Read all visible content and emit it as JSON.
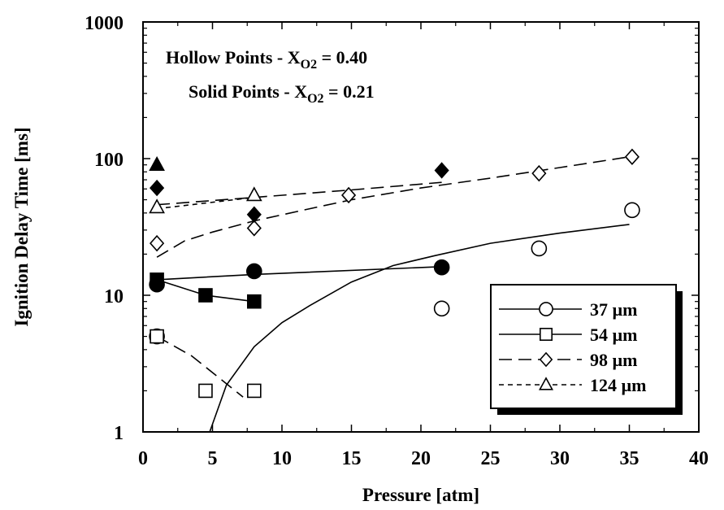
{
  "chart_data": {
    "type": "scatter",
    "xlabel": "Pressure [atm]",
    "ylabel": "Ignition Delay Time [ms]",
    "xlim": [
      0,
      40
    ],
    "ylim": [
      1,
      1000
    ],
    "yscale": "log",
    "grid": false,
    "x_ticks": [
      "0",
      "5",
      "10",
      "15",
      "20",
      "25",
      "30",
      "35",
      "40"
    ],
    "y_ticks": [
      "1",
      "10",
      "100",
      "1000"
    ],
    "annotations": [
      {
        "prefix": "Hollow Points - X",
        "sub": "O2",
        "suffix": " = 0.40"
      },
      {
        "prefix": "Solid Points - X",
        "sub": "O2",
        "suffix": " = 0.21"
      }
    ],
    "legend_position": "bottom-right",
    "series": [
      {
        "name": "37 µm",
        "marker": "circle",
        "line_style": "solid",
        "hollow_points": [
          [
            1,
            5
          ],
          [
            21.5,
            8
          ],
          [
            28.5,
            22
          ],
          [
            35.2,
            42
          ]
        ],
        "solid_points": [
          [
            1,
            12
          ],
          [
            8,
            15
          ],
          [
            21.5,
            16
          ]
        ],
        "fit_lines": [
          [
            [
              4.8,
              1
            ],
            [
              6,
              2.2
            ],
            [
              8,
              4.2
            ],
            [
              10,
              6.3
            ],
            [
              12,
              8.4
            ],
            [
              15,
              12.5
            ],
            [
              18,
              16.5
            ],
            [
              21,
              19.5
            ],
            [
              25,
              24
            ],
            [
              30,
              28.5
            ],
            [
              35,
              33
            ]
          ],
          [
            [
              1,
              13
            ],
            [
              8,
              14.2
            ],
            [
              21.5,
              16.2
            ]
          ]
        ]
      },
      {
        "name": "54 µm",
        "marker": "square",
        "line_style": "solid",
        "hollow_points": [
          [
            1,
            5
          ],
          [
            4.5,
            2
          ],
          [
            8,
            2
          ]
        ],
        "solid_points": [
          [
            1,
            13
          ],
          [
            4.5,
            10
          ],
          [
            8,
            9
          ]
        ],
        "fit_lines": [
          [
            [
              1,
              13
            ],
            [
              4.5,
              10
            ],
            [
              8,
              9
            ]
          ]
        ],
        "dashed_fit_lines": [
          [
            [
              1,
              5
            ],
            [
              3.5,
              3.6
            ],
            [
              7.2,
              1.8
            ]
          ]
        ]
      },
      {
        "name": "98 µm",
        "marker": "diamond",
        "line_style": "dashed",
        "hollow_points": [
          [
            1,
            24
          ],
          [
            8,
            31
          ],
          [
            14.8,
            54
          ],
          [
            28.5,
            78
          ],
          [
            35.2,
            103
          ]
        ],
        "solid_points": [
          [
            1,
            61
          ],
          [
            8,
            39
          ],
          [
            21.5,
            82
          ]
        ],
        "fit_lines": [
          [
            [
              1,
              19
            ],
            [
              3,
              25
            ],
            [
              5,
              29
            ],
            [
              8,
              35
            ],
            [
              12,
              43
            ],
            [
              15,
              50
            ],
            [
              20,
              61
            ],
            [
              25,
              72
            ],
            [
              30,
              86
            ],
            [
              35,
              103
            ]
          ],
          [
            [
              1,
              46
            ],
            [
              8,
              52
            ],
            [
              15,
              59
            ],
            [
              21.5,
              67
            ]
          ]
        ]
      },
      {
        "name": "124 µm",
        "marker": "triangle",
        "line_style": "dotted",
        "hollow_points": [
          [
            1,
            44
          ],
          [
            8,
            54
          ]
        ],
        "solid_points": [
          [
            1,
            90
          ]
        ],
        "fit_lines": [
          [
            [
              1,
              43
            ],
            [
              8,
              52
            ]
          ]
        ]
      }
    ]
  }
}
